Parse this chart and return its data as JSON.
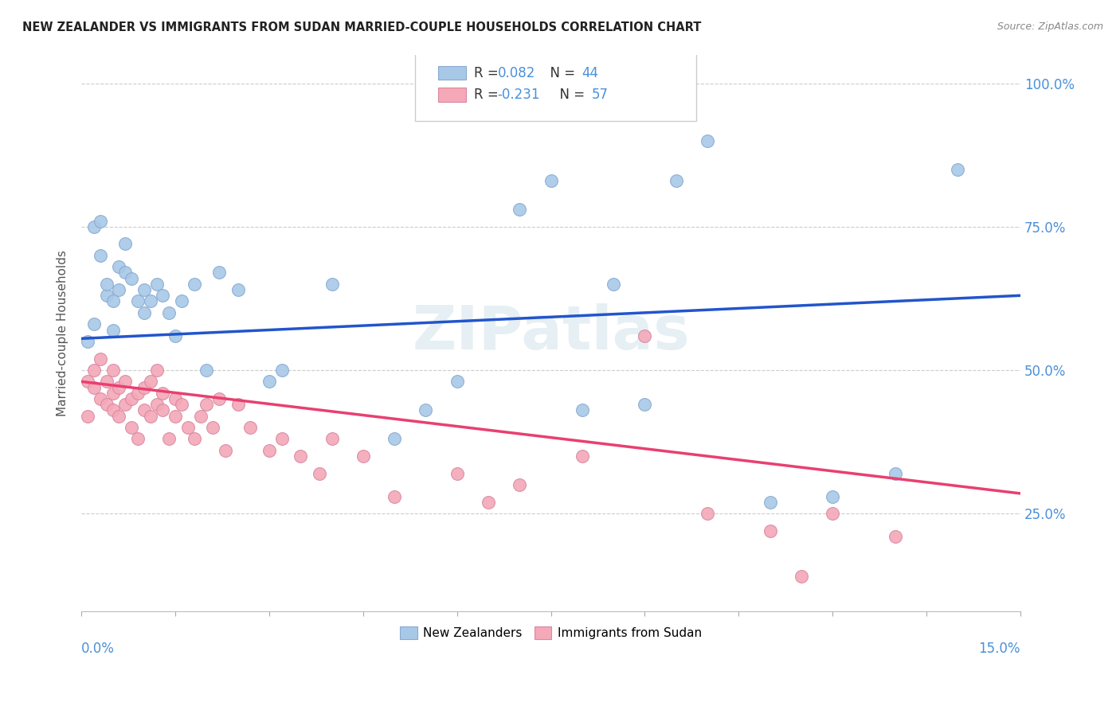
{
  "title": "NEW ZEALANDER VS IMMIGRANTS FROM SUDAN MARRIED-COUPLE HOUSEHOLDS CORRELATION CHART",
  "source": "Source: ZipAtlas.com",
  "ylabel": "Married-couple Households",
  "yticks_labels": [
    "100.0%",
    "75.0%",
    "50.0%",
    "25.0%"
  ],
  "ytick_values": [
    1.0,
    0.75,
    0.5,
    0.25
  ],
  "xlim": [
    0.0,
    0.15
  ],
  "ylim": [
    0.08,
    1.05
  ],
  "nz_color": "#a8c8e8",
  "sudan_color": "#f4a8b8",
  "nz_line_color": "#2255cc",
  "sudan_line_color": "#e84070",
  "background_color": "#ffffff",
  "grid_color": "#cccccc",
  "title_color": "#222222",
  "axis_label_color": "#4a90d9",
  "nz_line_y0": 0.555,
  "nz_line_y1": 0.63,
  "sudan_line_y0": 0.48,
  "sudan_line_y1": 0.285,
  "nz_x": [
    0.001,
    0.002,
    0.002,
    0.003,
    0.003,
    0.004,
    0.004,
    0.005,
    0.005,
    0.006,
    0.006,
    0.007,
    0.007,
    0.008,
    0.009,
    0.01,
    0.01,
    0.011,
    0.012,
    0.013,
    0.014,
    0.015,
    0.016,
    0.018,
    0.02,
    0.022,
    0.025,
    0.03,
    0.032,
    0.04,
    0.05,
    0.055,
    0.06,
    0.07,
    0.075,
    0.08,
    0.085,
    0.09,
    0.095,
    0.1,
    0.11,
    0.12,
    0.13,
    0.14
  ],
  "nz_y": [
    0.55,
    0.58,
    0.75,
    0.76,
    0.7,
    0.63,
    0.65,
    0.62,
    0.57,
    0.64,
    0.68,
    0.67,
    0.72,
    0.66,
    0.62,
    0.6,
    0.64,
    0.62,
    0.65,
    0.63,
    0.6,
    0.56,
    0.62,
    0.65,
    0.5,
    0.67,
    0.64,
    0.48,
    0.5,
    0.65,
    0.38,
    0.43,
    0.48,
    0.78,
    0.83,
    0.43,
    0.65,
    0.44,
    0.83,
    0.9,
    0.27,
    0.28,
    0.32,
    0.85
  ],
  "sudan_x": [
    0.001,
    0.001,
    0.002,
    0.002,
    0.003,
    0.003,
    0.004,
    0.004,
    0.005,
    0.005,
    0.005,
    0.006,
    0.006,
    0.007,
    0.007,
    0.008,
    0.008,
    0.009,
    0.009,
    0.01,
    0.01,
    0.011,
    0.011,
    0.012,
    0.012,
    0.013,
    0.013,
    0.014,
    0.015,
    0.015,
    0.016,
    0.017,
    0.018,
    0.019,
    0.02,
    0.021,
    0.022,
    0.023,
    0.025,
    0.027,
    0.03,
    0.032,
    0.035,
    0.038,
    0.04,
    0.045,
    0.05,
    0.06,
    0.065,
    0.07,
    0.08,
    0.09,
    0.1,
    0.11,
    0.12,
    0.13,
    0.115
  ],
  "sudan_y": [
    0.48,
    0.42,
    0.47,
    0.5,
    0.45,
    0.52,
    0.44,
    0.48,
    0.46,
    0.5,
    0.43,
    0.42,
    0.47,
    0.44,
    0.48,
    0.4,
    0.45,
    0.46,
    0.38,
    0.43,
    0.47,
    0.42,
    0.48,
    0.44,
    0.5,
    0.43,
    0.46,
    0.38,
    0.42,
    0.45,
    0.44,
    0.4,
    0.38,
    0.42,
    0.44,
    0.4,
    0.45,
    0.36,
    0.44,
    0.4,
    0.36,
    0.38,
    0.35,
    0.32,
    0.38,
    0.35,
    0.28,
    0.32,
    0.27,
    0.3,
    0.35,
    0.56,
    0.25,
    0.22,
    0.25,
    0.21,
    0.14
  ]
}
